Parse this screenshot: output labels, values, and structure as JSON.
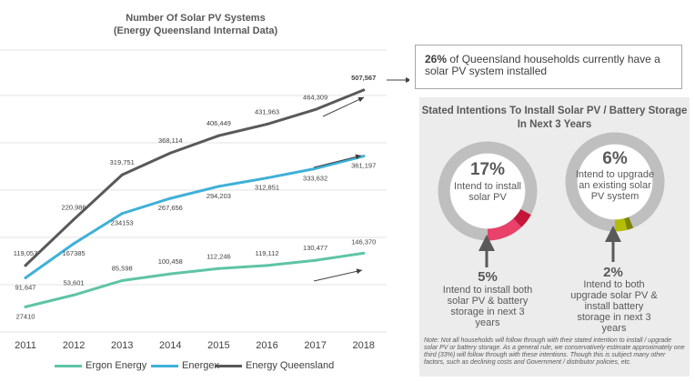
{
  "chart_data": {
    "type": "line",
    "title": "Number Of Solar PV Systems",
    "subtitle": "(Energy Queensland Internal Data)",
    "x": [
      "2011",
      "2012",
      "2013",
      "2014",
      "2015",
      "2016",
      "2017",
      "2018"
    ],
    "series": [
      {
        "name": "Ergon Energy",
        "color": "#5ec4a6",
        "values": [
          27410,
          53601,
          85598,
          100458,
          112246,
          119112,
          130477,
          146370
        ],
        "labels": [
          "27410",
          "53,601",
          "85,598",
          "100,458",
          "112,246",
          "119,112",
          "130,477",
          "146,370"
        ]
      },
      {
        "name": "Energex",
        "color": "#3fb0d8",
        "values": [
          91647,
          167385,
          234153,
          267656,
          294203,
          312851,
          333632,
          361197
        ],
        "labels": [
          "91,647",
          "167385",
          "234153",
          "267,656",
          "294,203",
          "312,851",
          "333,632",
          "361,197"
        ]
      },
      {
        "name": "Energy Queensland",
        "color": "#595959",
        "values": [
          119057,
          220986,
          319751,
          368114,
          406449,
          431963,
          464309,
          507567
        ],
        "labels": [
          "119,057",
          "220,986",
          "319,751",
          "368,114",
          "406,449",
          "431,963",
          "464,309",
          "507,567"
        ]
      }
    ],
    "grid": true,
    "legend": "bottom"
  },
  "callout": {
    "highlight": "26%",
    "text": " of Queensland households currently have a solar PV system installed"
  },
  "panel": {
    "title": "Stated Intentions To Install Solar PV / Battery Storage In Next 3 Years",
    "left_ring": {
      "pct": "17%",
      "text": "Intend to install solar PV",
      "main_color": "#e8416a",
      "accent_color": "#c41638",
      "ring_color": "#bfbfbf",
      "main_fraction": 0.17,
      "accent_fraction": 0.05
    },
    "right_ring": {
      "pct": "6%",
      "text": "Intend to upgrade an existing solar PV system",
      "main_color": "#b5bd00",
      "accent_color": "#7d8400",
      "ring_color": "#bfbfbf",
      "main_fraction": 0.06,
      "accent_fraction": 0.02
    },
    "left_sub": {
      "pct": "5%",
      "text": "Intend to install both solar PV & battery storage in next 3 years"
    },
    "right_sub": {
      "pct": "2%",
      "text": "Intend to both upgrade solar PV & install battery storage in next 3 years"
    },
    "note": "Note: Not all households will follow through with their stated intention to install / upgrade solar PV or battery storage. As a general rule, we conservatively estimate approximately one third (33%) will follow through with these intentions. Though this is subject many other factors, such as declining costs and Government / distributor policies, etc."
  }
}
